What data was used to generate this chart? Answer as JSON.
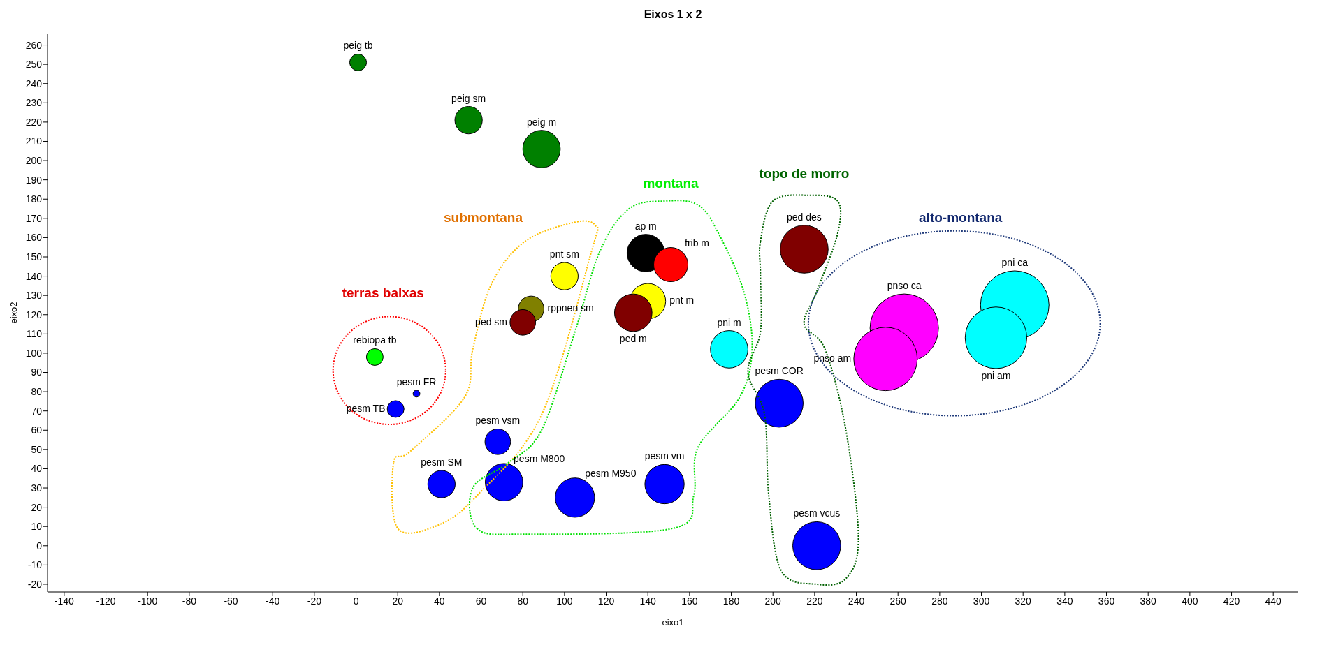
{
  "chart_data": {
    "type": "bubble",
    "title": "Eixos 1 x 2",
    "xlabel": "eixo1",
    "ylabel": "eixo2",
    "xlim": [
      -148,
      452
    ],
    "ylim": [
      -24,
      266
    ],
    "xticks": [
      -140,
      -120,
      -100,
      -80,
      -60,
      -40,
      -20,
      0,
      20,
      40,
      60,
      80,
      100,
      120,
      140,
      160,
      180,
      200,
      220,
      240,
      260,
      280,
      300,
      320,
      340,
      360,
      380,
      400,
      420,
      440
    ],
    "yticks": [
      -20,
      -10,
      0,
      10,
      20,
      30,
      40,
      50,
      60,
      70,
      80,
      90,
      100,
      110,
      120,
      130,
      140,
      150,
      160,
      170,
      180,
      190,
      200,
      210,
      220,
      230,
      240,
      250,
      260
    ],
    "annotations": [
      "terras baixas",
      "submontana",
      "montana",
      "topo de morro",
      "alto-montana"
    ],
    "series": [
      {
        "name": "peig tb",
        "color": "#008000",
        "x": [
          1
        ],
        "values": [
          251
        ],
        "sizes": [
          0.06
        ]
      },
      {
        "name": "peig sm",
        "color": "#008000",
        "x": [
          54
        ],
        "values": [
          221
        ],
        "sizes": [
          0.16
        ]
      },
      {
        "name": "peig m",
        "color": "#008000",
        "x": [
          89
        ],
        "values": [
          206
        ],
        "sizes": [
          0.3
        ]
      },
      {
        "name": "ap m",
        "color": "#000000",
        "x": [
          139
        ],
        "values": [
          152
        ],
        "sizes": [
          0.3
        ]
      },
      {
        "name": "frib m",
        "color": "#ff0000",
        "x": [
          151
        ],
        "values": [
          146
        ],
        "sizes": [
          0.25
        ]
      },
      {
        "name": "pnt sm",
        "color": "#ffff00",
        "x": [
          100
        ],
        "values": [
          140
        ],
        "sizes": [
          0.16
        ]
      },
      {
        "name": "rppnen sm",
        "color": "#808000",
        "x": [
          84
        ],
        "values": [
          123
        ],
        "sizes": [
          0.14
        ]
      },
      {
        "name": "ped sm",
        "color": "#800000",
        "x": [
          80
        ],
        "values": [
          116
        ],
        "sizes": [
          0.14
        ]
      },
      {
        "name": "pnt m",
        "color": "#ffff00",
        "x": [
          140
        ],
        "values": [
          127
        ],
        "sizes": [
          0.27
        ]
      },
      {
        "name": "ped m",
        "color": "#800000",
        "x": [
          133
        ],
        "values": [
          121
        ],
        "sizes": [
          0.3
        ]
      },
      {
        "name": "ped des",
        "color": "#800000",
        "x": [
          215
        ],
        "values": [
          154
        ],
        "sizes": [
          0.49
        ]
      },
      {
        "name": "pni m",
        "color": "#00ffff",
        "x": [
          179
        ],
        "values": [
          102
        ],
        "sizes": [
          0.3
        ]
      },
      {
        "name": "rebiopa tb",
        "color": "#00ff00",
        "x": [
          9
        ],
        "values": [
          98
        ],
        "sizes": [
          0.06
        ]
      },
      {
        "name": "pesm FR",
        "color": "#0000ff",
        "x": [
          29
        ],
        "values": [
          79
        ],
        "sizes": [
          0.01
        ]
      },
      {
        "name": "pesm TB",
        "color": "#0000ff",
        "x": [
          19
        ],
        "values": [
          71
        ],
        "sizes": [
          0.06
        ]
      },
      {
        "name": "pesm vsm",
        "color": "#0000ff",
        "x": [
          68
        ],
        "values": [
          54
        ],
        "sizes": [
          0.14
        ]
      },
      {
        "name": "pesm SM",
        "color": "#0000ff",
        "x": [
          41
        ],
        "values": [
          32
        ],
        "sizes": [
          0.16
        ]
      },
      {
        "name": "pesm M800",
        "color": "#0000ff",
        "x": [
          71
        ],
        "values": [
          33
        ],
        "sizes": [
          0.3
        ]
      },
      {
        "name": "pesm M950",
        "color": "#0000ff",
        "x": [
          105
        ],
        "values": [
          25
        ],
        "sizes": [
          0.33
        ]
      },
      {
        "name": "pesm vm",
        "color": "#0000ff",
        "x": [
          148
        ],
        "values": [
          32
        ],
        "sizes": [
          0.33
        ]
      },
      {
        "name": "pesm COR",
        "color": "#0000ff",
        "x": [
          203
        ],
        "values": [
          74
        ],
        "sizes": [
          0.49
        ]
      },
      {
        "name": "pesm vcus",
        "color": "#0000ff",
        "x": [
          221
        ],
        "values": [
          0
        ],
        "sizes": [
          0.49
        ]
      },
      {
        "name": "pnso ca",
        "color": "#ff00ff",
        "x": [
          263
        ],
        "values": [
          113
        ],
        "sizes": [
          1
        ]
      },
      {
        "name": "pnso am",
        "color": "#ff00ff",
        "x": [
          254
        ],
        "values": [
          97
        ],
        "sizes": [
          0.86
        ]
      },
      {
        "name": "pni ca",
        "color": "#00ffff",
        "x": [
          316
        ],
        "values": [
          125
        ],
        "sizes": [
          1
        ]
      },
      {
        "name": "pni am",
        "color": "#00ffff",
        "x": [
          307
        ],
        "values": [
          108
        ],
        "sizes": [
          0.81
        ]
      }
    ]
  }
}
